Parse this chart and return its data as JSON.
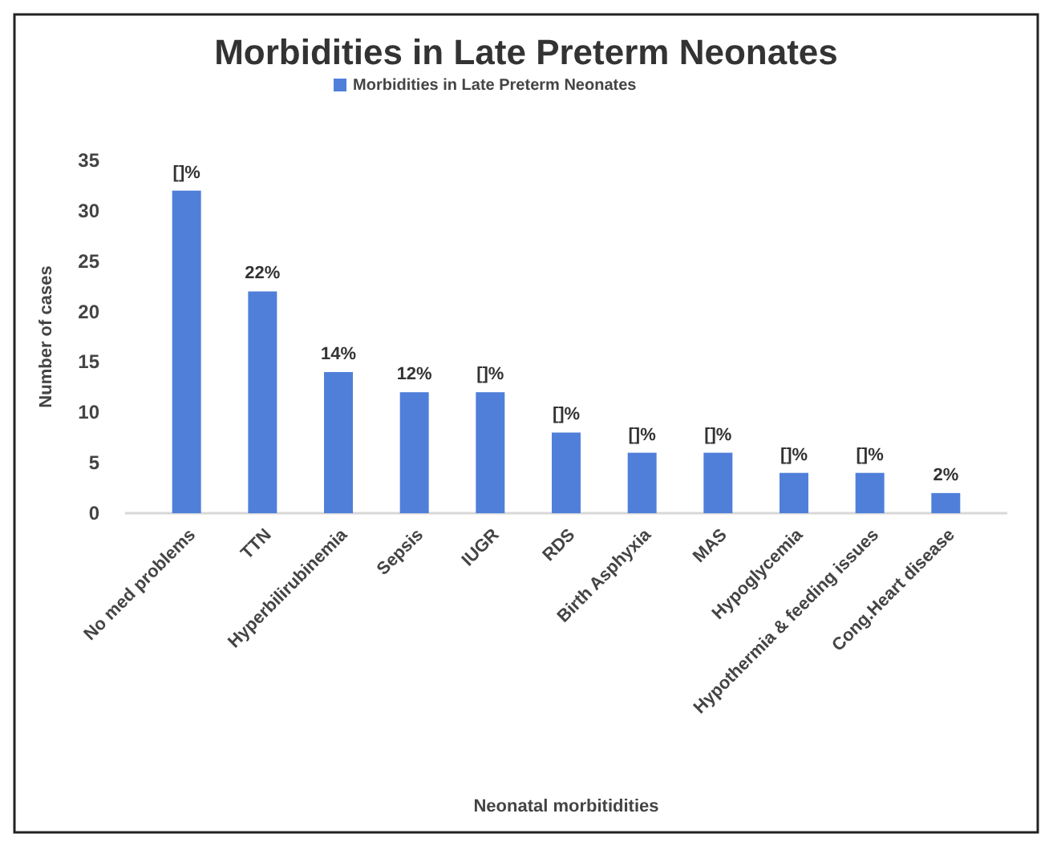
{
  "chart_data": {
    "type": "bar",
    "title": "Morbidities in Late Preterm Neonates",
    "xlabel": "Neonatal morbitidities",
    "ylabel": "Number of cases",
    "categories": [
      "No med problems",
      "TTN",
      "Hyperbilirubinemia",
      "Sepsis",
      "IUGR",
      "RDS",
      "Birth Asphyxia",
      "MAS",
      "Hypoglycemia",
      "Hypothermia & feeding issues",
      "Cong.Heart disease"
    ],
    "series": [
      {
        "name": "Morbidities in Late Preterm Neonates",
        "color": "#4f7fd9",
        "values": [
          32,
          22,
          14,
          12,
          12,
          8,
          6,
          6,
          4,
          4,
          2
        ],
        "value_labels": [
          "[]%",
          "22%",
          "14%",
          "12%",
          "[]%",
          "[]%",
          "[]%",
          "[]%",
          "[]%",
          "[]%",
          "2%"
        ]
      }
    ],
    "ylim": [
      0,
      35
    ],
    "yticks": [
      0,
      5,
      10,
      15,
      20,
      25,
      30,
      35
    ],
    "legend": "top",
    "grid": false
  }
}
